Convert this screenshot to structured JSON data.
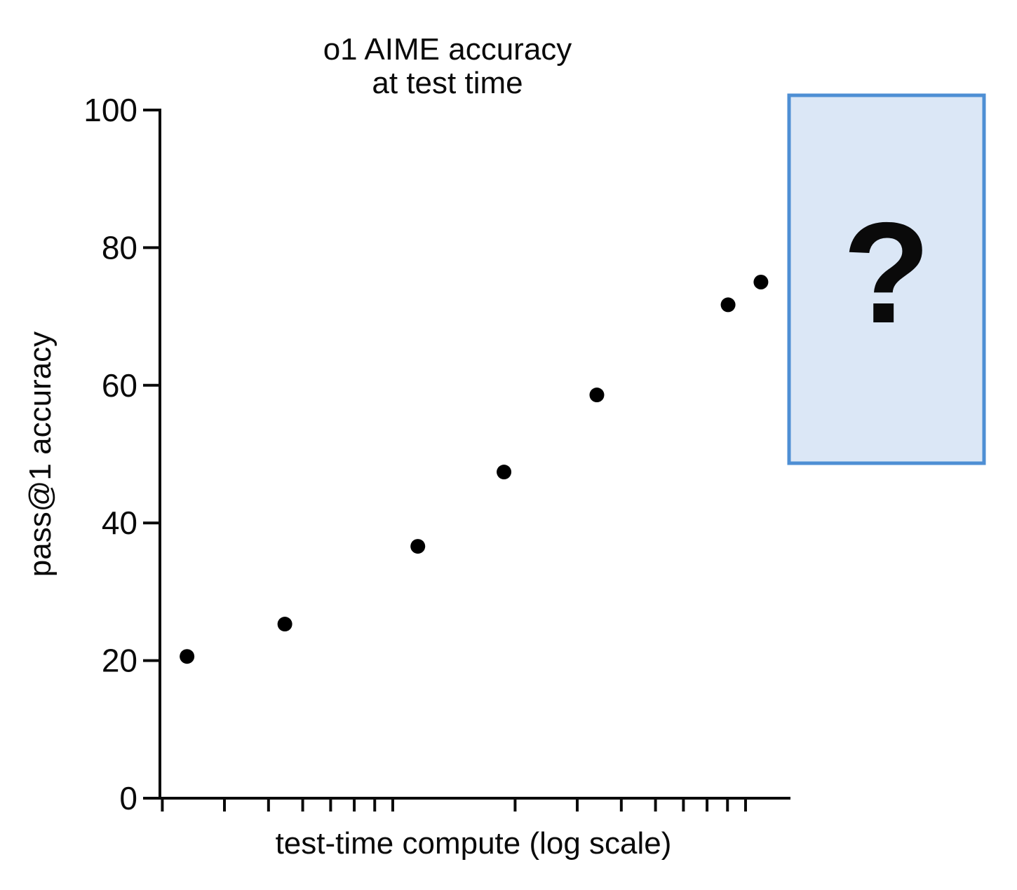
{
  "chart_data": {
    "type": "scatter",
    "title_lines": [
      "o1 AIME accuracy",
      "at test time"
    ],
    "xlabel": "test-time compute (log scale)",
    "ylabel": "pass@1 accuracy",
    "x_scale": "log",
    "x_range": [
      1.8,
      120
    ],
    "ylim": [
      0,
      100
    ],
    "grid": false,
    "legend": "none",
    "y_ticks": [
      0,
      20,
      40,
      60,
      80,
      100
    ],
    "x_minor_ticks": [
      2,
      3,
      4,
      5,
      6,
      7,
      8,
      9,
      20,
      30,
      40,
      50,
      60,
      70,
      80,
      90
    ],
    "point_color": "#000000",
    "points": [
      {
        "compute": 2.35,
        "accuracy": 20.6
      },
      {
        "compute": 4.45,
        "accuracy": 25.3
      },
      {
        "compute": 10.6,
        "accuracy": 36.6
      },
      {
        "compute": 18.6,
        "accuracy": 47.4
      },
      {
        "compute": 34.1,
        "accuracy": 58.6
      },
      {
        "compute": 80.3,
        "accuracy": 71.7
      },
      {
        "compute": 99.5,
        "accuracy": 75.0
      }
    ]
  },
  "overlay": {
    "question_mark": "?",
    "box_fill": "#dbe7f6",
    "box_border": "#4e8fd4"
  }
}
